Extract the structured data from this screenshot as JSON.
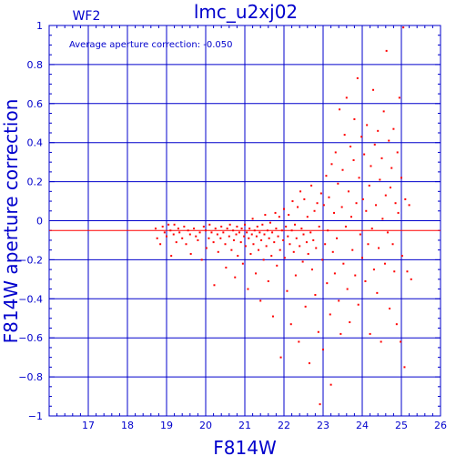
{
  "chart_data": {
    "type": "scatter",
    "title": "lmc_u2xj02",
    "chip_label": "WF2",
    "annotation": "Average aperture correction: -0.050",
    "xlabel": "F814W",
    "ylabel": "F814W aperture correction",
    "xlim": [
      16,
      26
    ],
    "ylim": [
      -1,
      1
    ],
    "x_ticks": [
      "17",
      "18",
      "19",
      "20",
      "21",
      "22",
      "23",
      "24",
      "25",
      "26"
    ],
    "y_ticks": [
      "1",
      "0.8",
      "0.6",
      "0.4",
      "0.2",
      "0",
      "−0.2",
      "−0.4",
      "−0.6",
      "−0.8",
      "−1"
    ],
    "average_line": -0.05,
    "zero_line": 0,
    "grid": true,
    "colors": {
      "axes": "#0000cc",
      "points": "#ff0000",
      "average_line": "#ff0000",
      "title": "#0000cc"
    },
    "series": [
      {
        "points": [
          [
            18.72,
            -0.04
          ],
          [
            18.76,
            -0.09
          ],
          [
            18.84,
            -0.12
          ],
          [
            18.9,
            -0.03
          ],
          [
            18.95,
            -0.06
          ],
          [
            19.0,
            -0.08
          ],
          [
            19.05,
            -0.02
          ],
          [
            19.1,
            -0.05
          ],
          [
            19.12,
            -0.18
          ],
          [
            19.18,
            -0.07
          ],
          [
            19.2,
            -0.02
          ],
          [
            19.25,
            -0.11
          ],
          [
            19.3,
            -0.04
          ],
          [
            19.33,
            -0.06
          ],
          [
            19.4,
            -0.09
          ],
          [
            19.45,
            -0.03
          ],
          [
            19.5,
            -0.12
          ],
          [
            19.55,
            -0.05
          ],
          [
            19.6,
            -0.07
          ],
          [
            19.62,
            -0.17
          ],
          [
            19.7,
            -0.04
          ],
          [
            19.75,
            -0.08
          ],
          [
            19.8,
            -0.1
          ],
          [
            19.85,
            -0.06
          ],
          [
            19.9,
            -0.2
          ],
          [
            19.95,
            -0.03
          ],
          [
            20.0,
            -0.05
          ],
          [
            20.02,
            -0.14
          ],
          [
            20.08,
            -0.09
          ],
          [
            20.1,
            -0.02
          ],
          [
            20.15,
            -0.06
          ],
          [
            20.2,
            -0.11
          ],
          [
            20.22,
            -0.33
          ],
          [
            20.25,
            -0.04
          ],
          [
            20.3,
            -0.07
          ],
          [
            20.32,
            -0.16
          ],
          [
            20.38,
            -0.09
          ],
          [
            20.4,
            -0.03
          ],
          [
            20.45,
            -0.06
          ],
          [
            20.5,
            -0.12
          ],
          [
            20.52,
            -0.24
          ],
          [
            20.55,
            -0.04
          ],
          [
            20.6,
            -0.08
          ],
          [
            20.62,
            -0.02
          ],
          [
            20.66,
            -0.15
          ],
          [
            20.7,
            -0.05
          ],
          [
            20.72,
            -0.1
          ],
          [
            20.75,
            -0.29
          ],
          [
            20.78,
            -0.07
          ],
          [
            20.8,
            -0.03
          ],
          [
            20.82,
            -0.18
          ],
          [
            20.86,
            -0.06
          ],
          [
            20.9,
            -0.11
          ],
          [
            20.92,
            -0.04
          ],
          [
            20.95,
            -0.22
          ],
          [
            20.98,
            -0.08
          ],
          [
            21.0,
            -0.02
          ],
          [
            21.02,
            -0.13
          ],
          [
            21.05,
            -0.06
          ],
          [
            21.08,
            -0.35
          ],
          [
            21.1,
            -0.09
          ],
          [
            21.12,
            -0.04
          ],
          [
            21.15,
            -0.17
          ],
          [
            21.18,
            -0.07
          ],
          [
            21.2,
            0.01
          ],
          [
            21.22,
            -0.12
          ],
          [
            21.25,
            -0.05
          ],
          [
            21.28,
            -0.27
          ],
          [
            21.3,
            -0.08
          ],
          [
            21.32,
            -0.03
          ],
          [
            21.35,
            -0.15
          ],
          [
            21.38,
            -0.06
          ],
          [
            21.4,
            -0.41
          ],
          [
            21.42,
            -0.1
          ],
          [
            21.45,
            -0.02
          ],
          [
            21.48,
            -0.2
          ],
          [
            21.5,
            -0.07
          ],
          [
            21.52,
            0.03
          ],
          [
            21.55,
            -0.13
          ],
          [
            21.58,
            -0.05
          ],
          [
            21.6,
            -0.31
          ],
          [
            21.62,
            -0.09
          ],
          [
            21.65,
            -0.01
          ],
          [
            21.68,
            -0.18
          ],
          [
            21.7,
            -0.06
          ],
          [
            21.72,
            -0.49
          ],
          [
            21.75,
            -0.11
          ],
          [
            21.78,
            0.04
          ],
          [
            21.8,
            -0.04
          ],
          [
            21.82,
            -0.23
          ],
          [
            21.85,
            -0.08
          ],
          [
            21.88,
            0.02
          ],
          [
            21.9,
            -0.15
          ],
          [
            21.92,
            -0.7
          ],
          [
            21.95,
            -0.05
          ],
          [
            21.98,
            -0.1
          ],
          [
            22.0,
            0.06
          ],
          [
            22.02,
            -0.19
          ],
          [
            22.05,
            -0.03
          ],
          [
            22.08,
            -0.36
          ],
          [
            22.1,
            -0.08
          ],
          [
            22.12,
            0.03
          ],
          [
            22.15,
            -0.12
          ],
          [
            22.18,
            -0.53
          ],
          [
            22.2,
            -0.05
          ],
          [
            22.22,
            0.1
          ],
          [
            22.25,
            -0.16
          ],
          [
            22.28,
            -0.02
          ],
          [
            22.3,
            -0.28
          ],
          [
            22.32,
            -0.09
          ],
          [
            22.35,
            0.07
          ],
          [
            22.38,
            -0.62
          ],
          [
            22.4,
            -0.13
          ],
          [
            22.42,
            0.15
          ],
          [
            22.45,
            -0.04
          ],
          [
            22.48,
            -0.21
          ],
          [
            22.5,
            -0.07
          ],
          [
            22.52,
            0.11
          ],
          [
            22.55,
            -0.44
          ],
          [
            22.58,
            -0.11
          ],
          [
            22.6,
            0.02
          ],
          [
            22.62,
            -0.17
          ],
          [
            22.65,
            -0.73
          ],
          [
            22.68,
            -0.06
          ],
          [
            22.7,
            0.18
          ],
          [
            22.72,
            -0.25
          ],
          [
            22.75,
            -0.1
          ],
          [
            22.78,
            0.05
          ],
          [
            22.8,
            -0.38
          ],
          [
            22.82,
            -0.14
          ],
          [
            22.85,
            0.09
          ],
          [
            22.88,
            -0.57
          ],
          [
            22.9,
            -0.03
          ],
          [
            22.92,
            -0.94
          ],
          [
            22.95,
            0.14
          ],
          [
            22.98,
            -0.2
          ],
          [
            23.0,
            -0.66
          ],
          [
            23.02,
            0.08
          ],
          [
            23.05,
            -0.12
          ],
          [
            23.08,
            0.23
          ],
          [
            23.1,
            -0.32
          ],
          [
            23.12,
            -0.05
          ],
          [
            23.15,
            0.12
          ],
          [
            23.18,
            -0.48
          ],
          [
            23.2,
            -0.84
          ],
          [
            23.22,
            0.29
          ],
          [
            23.25,
            -0.16
          ],
          [
            23.28,
            0.04
          ],
          [
            23.3,
            -0.27
          ],
          [
            23.32,
            0.35
          ],
          [
            23.35,
            -0.09
          ],
          [
            23.38,
            0.19
          ],
          [
            23.4,
            -0.41
          ],
          [
            23.42,
            0.57
          ],
          [
            23.45,
            -0.58
          ],
          [
            23.48,
            0.07
          ],
          [
            23.5,
            0.26
          ],
          [
            23.52,
            -0.22
          ],
          [
            23.55,
            0.44
          ],
          [
            23.58,
            -0.03
          ],
          [
            23.6,
            0.63
          ],
          [
            23.62,
            -0.35
          ],
          [
            23.65,
            0.15
          ],
          [
            23.68,
            -0.52
          ],
          [
            23.7,
            0.38
          ],
          [
            23.72,
            0.02
          ],
          [
            23.75,
            -0.15
          ],
          [
            23.78,
            0.31
          ],
          [
            23.8,
            0.52
          ],
          [
            23.82,
            -0.28
          ],
          [
            23.85,
            0.09
          ],
          [
            23.88,
            0.73
          ],
          [
            23.9,
            -0.43
          ],
          [
            23.92,
            0.22
          ],
          [
            23.95,
            -0.07
          ],
          [
            23.98,
            0.43
          ],
          [
            24.0,
            -0.19
          ],
          [
            24.02,
            0.11
          ],
          [
            24.05,
            0.34
          ],
          [
            24.08,
            -0.31
          ],
          [
            24.1,
            0.05
          ],
          [
            24.12,
            0.49
          ],
          [
            24.15,
            -0.12
          ],
          [
            24.18,
            0.18
          ],
          [
            24.2,
            -0.58
          ],
          [
            24.22,
            0.28
          ],
          [
            24.25,
            -0.04
          ],
          [
            24.28,
            0.67
          ],
          [
            24.3,
            -0.25
          ],
          [
            24.32,
            0.39
          ],
          [
            24.35,
            0.08
          ],
          [
            24.38,
            -0.37
          ],
          [
            24.4,
            0.46
          ],
          [
            24.42,
            -0.14
          ],
          [
            24.45,
            0.21
          ],
          [
            24.48,
            -0.62
          ],
          [
            24.5,
            0.32
          ],
          [
            24.52,
            0.01
          ],
          [
            24.55,
            0.56
          ],
          [
            24.58,
            -0.22
          ],
          [
            24.6,
            0.13
          ],
          [
            24.62,
            0.87
          ],
          [
            24.65,
            -0.06
          ],
          [
            24.68,
            0.41
          ],
          [
            24.7,
            -0.45
          ],
          [
            24.72,
            0.17
          ],
          [
            24.75,
            0.27
          ],
          [
            24.78,
            -0.12
          ],
          [
            24.8,
            0.47
          ],
          [
            24.82,
            -0.26
          ],
          [
            24.85,
            0.09
          ],
          [
            24.88,
            -0.53
          ],
          [
            24.9,
            0.35
          ],
          [
            24.92,
            0.04
          ],
          [
            24.95,
            0.63
          ],
          [
            24.98,
            -0.62
          ],
          [
            25.0,
            0.22
          ],
          [
            25.02,
            -0.18
          ],
          [
            25.05,
            0.99
          ],
          [
            25.08,
            -0.75
          ],
          [
            25.1,
            0.11
          ],
          [
            25.15,
            -0.26
          ],
          [
            25.2,
            0.08
          ],
          [
            25.25,
            -0.3
          ]
        ]
      }
    ]
  }
}
